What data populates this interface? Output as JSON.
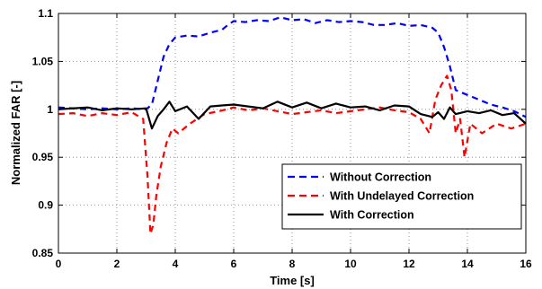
{
  "chart_data": {
    "type": "line",
    "title": "",
    "xlabel": "Time [s]",
    "ylabel": "Normalized FAR [-]",
    "xlim": [
      0,
      16
    ],
    "ylim": [
      0.85,
      1.1
    ],
    "xticks": [
      0,
      2,
      4,
      6,
      8,
      10,
      12,
      14,
      16
    ],
    "xtick_labels": [
      "0",
      "2",
      "4",
      "6",
      "8",
      "10",
      "12",
      "14",
      "16"
    ],
    "yticks": [
      0.85,
      0.9,
      0.95,
      1.0,
      1.05,
      1.1
    ],
    "ytick_labels": [
      "0.85",
      "0.9",
      "0.95",
      "1",
      "1.05",
      "1.1"
    ],
    "grid": true,
    "legend_position": "lower-right",
    "series": [
      {
        "name": "Without Correction",
        "color": "#0000ff",
        "dash": "dashed",
        "x": [
          0,
          0.5,
          1.0,
          1.5,
          2.0,
          2.5,
          3.0,
          3.2,
          3.4,
          3.6,
          3.8,
          4.0,
          4.4,
          4.8,
          5.2,
          5.6,
          5.8,
          6.0,
          6.4,
          6.8,
          7.2,
          7.6,
          8.0,
          8.4,
          8.8,
          9.2,
          9.6,
          10.0,
          10.4,
          10.8,
          11.2,
          11.6,
          12.0,
          12.4,
          12.8,
          13.0,
          13.2,
          13.4,
          13.6,
          14.0,
          14.4,
          14.8,
          15.2,
          15.6,
          16.0
        ],
        "y": [
          1.002,
          1.001,
          1.0,
          1.001,
          1.0,
          1.001,
          1.0,
          1.005,
          1.03,
          1.055,
          1.068,
          1.075,
          1.077,
          1.076,
          1.08,
          1.083,
          1.088,
          1.092,
          1.091,
          1.093,
          1.092,
          1.096,
          1.093,
          1.094,
          1.09,
          1.093,
          1.091,
          1.092,
          1.091,
          1.088,
          1.088,
          1.09,
          1.087,
          1.088,
          1.085,
          1.08,
          1.065,
          1.045,
          1.02,
          1.015,
          1.01,
          1.005,
          1.002,
          0.998,
          0.992
        ]
      },
      {
        "name": "With Undelayed Correction",
        "color": "#ff0000",
        "dash": "dashed",
        "x": [
          0,
          0.5,
          1.0,
          1.5,
          2.0,
          2.5,
          2.9,
          3.05,
          3.15,
          3.25,
          3.35,
          3.5,
          3.7,
          3.9,
          4.1,
          4.5,
          5.0,
          5.5,
          6.0,
          6.5,
          7.0,
          7.5,
          8.0,
          8.5,
          9.0,
          9.5,
          10.0,
          10.5,
          11.0,
          11.5,
          12.0,
          12.4,
          12.7,
          12.9,
          13.1,
          13.3,
          13.45,
          13.6,
          13.75,
          13.9,
          14.1,
          14.5,
          15.0,
          15.5,
          16.0
        ],
        "y": [
          0.995,
          0.996,
          0.993,
          0.996,
          0.994,
          0.997,
          0.99,
          0.93,
          0.87,
          0.88,
          0.91,
          0.94,
          0.965,
          0.98,
          0.975,
          0.985,
          0.995,
          0.998,
          1.002,
          0.999,
          1.001,
          0.998,
          0.995,
          0.997,
          0.999,
          0.996,
          0.998,
          1.0,
          1.002,
          0.999,
          0.997,
          0.99,
          0.975,
          1.01,
          1.025,
          1.035,
          1.02,
          0.975,
          0.99,
          0.95,
          0.985,
          0.975,
          0.985,
          0.98,
          0.985
        ]
      },
      {
        "name": "With Correction",
        "color": "#000000",
        "dash": "solid",
        "x": [
          0,
          0.5,
          1.0,
          1.5,
          2.0,
          2.5,
          3.0,
          3.2,
          3.4,
          3.6,
          3.8,
          4.0,
          4.4,
          4.8,
          5.2,
          5.6,
          6.0,
          6.5,
          7.0,
          7.5,
          8.0,
          8.5,
          9.0,
          9.5,
          10.0,
          10.5,
          11.0,
          11.5,
          12.0,
          12.4,
          12.8,
          13.0,
          13.2,
          13.4,
          13.6,
          14.0,
          14.4,
          14.8,
          15.2,
          15.6,
          16.0
        ],
        "y": [
          1.0,
          1.001,
          1.002,
          0.999,
          1.001,
          1.0,
          1.001,
          0.98,
          0.993,
          1.0,
          1.008,
          0.998,
          1.003,
          0.99,
          1.003,
          1.004,
          1.005,
          1.003,
          1.001,
          1.008,
          1.002,
          1.007,
          1.001,
          1.006,
          1.002,
          1.003,
          0.999,
          1.004,
          1.003,
          0.995,
          0.992,
          0.997,
          0.99,
          1.002,
          0.995,
          0.998,
          0.996,
          0.999,
          0.994,
          0.996,
          0.985
        ]
      }
    ]
  }
}
